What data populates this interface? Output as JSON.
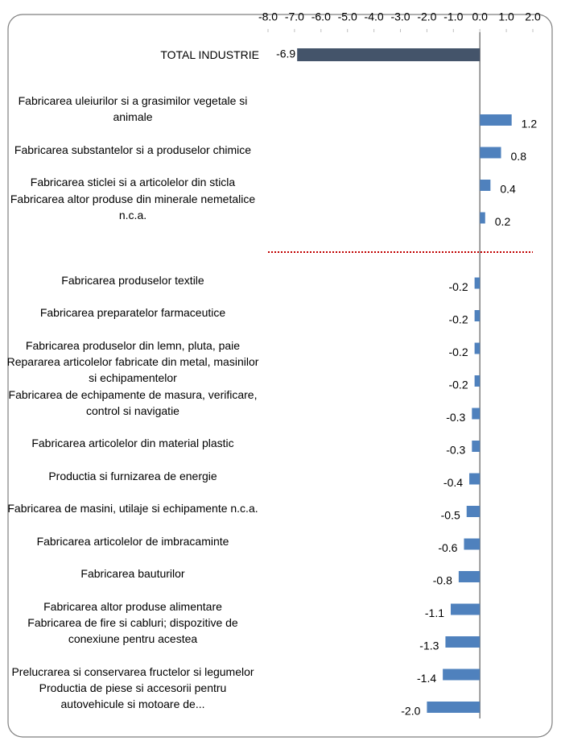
{
  "chart_data": {
    "type": "barh",
    "categories": [
      "TOTAL INDUSTRIE",
      "Fabricarea uleiurilor si a grasimilor vegetale si animale",
      "Fabricarea substantelor si a produselor chimice",
      "Fabricarea sticlei si a articolelor din sticla",
      "Fabricarea altor produse din minerale nemetalice n.c.a.",
      "Fabricarea produselor textile",
      "Fabricarea preparatelor farmaceutice",
      "Fabricarea produselor din lemn, pluta, paie",
      "Repararea articolelor fabricate din metal, masinilor si echipamentelor",
      "Fabricarea de echipamente de masura, verificare, control si navigatie",
      "Fabricarea articolelor din material plastic",
      "Productia si furnizarea de energie",
      "Fabricarea de masini, utilaje si echipamente n.c.a.",
      "Fabricarea articolelor de imbracaminte",
      "Fabricarea bauturilor",
      "Fabricarea altor produse alimentare",
      "Fabricarea de fire si cabluri; dispozitive de conexiune pentru acestea",
      "Prelucrarea si conservarea fructelor si legumelor",
      "Productia de piese si accesorii pentru autovehicule si motoare de..."
    ],
    "values": [
      -6.9,
      1.2,
      0.8,
      0.4,
      0.2,
      -0.2,
      -0.2,
      -0.2,
      -0.2,
      -0.3,
      -0.3,
      -0.4,
      -0.5,
      -0.6,
      -0.8,
      -1.1,
      -1.3,
      -1.4,
      -2.0
    ],
    "value_labels": [
      "-6.9",
      "1.2",
      "0.8",
      "0.4",
      "0.2",
      "-0.2",
      "-0.2",
      "-0.2",
      "-0.2",
      "-0.3",
      "-0.3",
      "-0.4",
      "-0.5",
      "-0.6",
      "-0.8",
      "-1.1",
      "-1.3",
      "-1.4",
      "-2.0"
    ],
    "colors": [
      "#44546a",
      "#4f81bd",
      "#4f81bd",
      "#4f81bd",
      "#4f81bd",
      "#4f81bd",
      "#4f81bd",
      "#4f81bd",
      "#4f81bd",
      "#4f81bd",
      "#4f81bd",
      "#4f81bd",
      "#4f81bd",
      "#4f81bd",
      "#4f81bd",
      "#4f81bd",
      "#4f81bd",
      "#4f81bd",
      "#4f81bd"
    ],
    "xlim": [
      -8,
      2
    ],
    "xticks": [
      {
        "value": -8,
        "label": "-8.0"
      },
      {
        "value": -7,
        "label": "-7.0"
      },
      {
        "value": -6,
        "label": "-6.0"
      },
      {
        "value": -5,
        "label": "-5.0"
      },
      {
        "value": -4,
        "label": "-4.0"
      },
      {
        "value": -3,
        "label": "-3.0"
      },
      {
        "value": -2,
        "label": "-2.0"
      },
      {
        "value": -1,
        "label": "-1.0"
      },
      {
        "value": 0,
        "label": "0.0"
      },
      {
        "value": 1,
        "label": "1.0"
      },
      {
        "value": 2,
        "label": "2.0"
      }
    ]
  }
}
